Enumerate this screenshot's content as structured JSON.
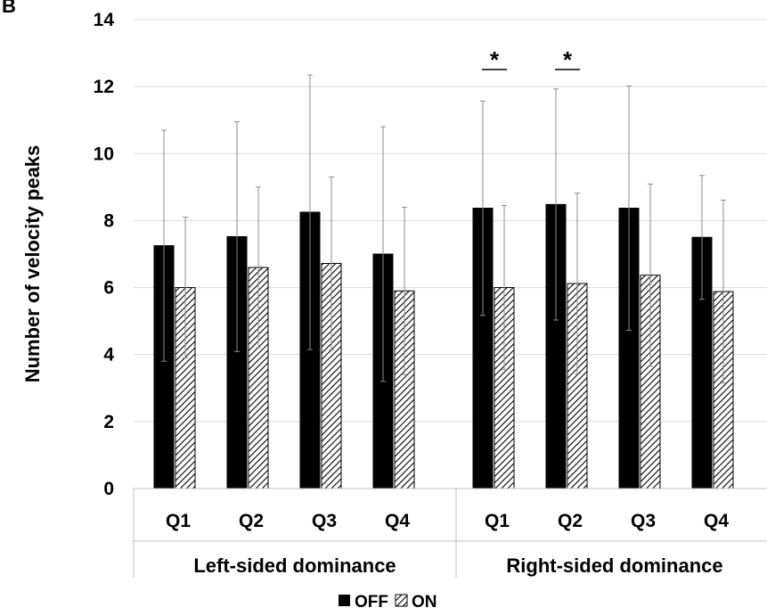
{
  "panel_label": "B",
  "chart_data": {
    "type": "bar",
    "ylabel": "Number of velocity peaks",
    "ylim": [
      0,
      14
    ],
    "yticks": [
      "0",
      "2",
      "4",
      "6",
      "8",
      "10",
      "12",
      "14"
    ],
    "grid": true,
    "legend_position": "bottom",
    "groups": [
      {
        "label": "Left-sided dominance",
        "categories": [
          "Q1",
          "Q2",
          "Q3",
          "Q4"
        ]
      },
      {
        "label": "Right-sided dominance",
        "categories": [
          "Q1",
          "Q2",
          "Q3",
          "Q4"
        ]
      }
    ],
    "series": [
      {
        "name": "OFF",
        "fill": "solid",
        "color": "#000000",
        "values": [
          7.25,
          7.52,
          8.25,
          7.0,
          8.37,
          8.48,
          8.37,
          7.5
        ],
        "errors": [
          3.45,
          3.43,
          4.1,
          3.8,
          3.2,
          3.45,
          3.65,
          1.85
        ]
      },
      {
        "name": "ON",
        "fill": "hatched",
        "color": "#000000",
        "values": [
          6.0,
          6.6,
          6.72,
          5.9,
          6.0,
          6.12,
          6.37,
          5.88
        ],
        "errors": [
          2.1,
          2.4,
          2.58,
          2.5,
          2.45,
          2.7,
          2.72,
          2.73
        ]
      }
    ],
    "significance": [
      {
        "group": 1,
        "category": 0,
        "marker": "*"
      },
      {
        "group": 1,
        "category": 1,
        "marker": "*"
      }
    ]
  }
}
